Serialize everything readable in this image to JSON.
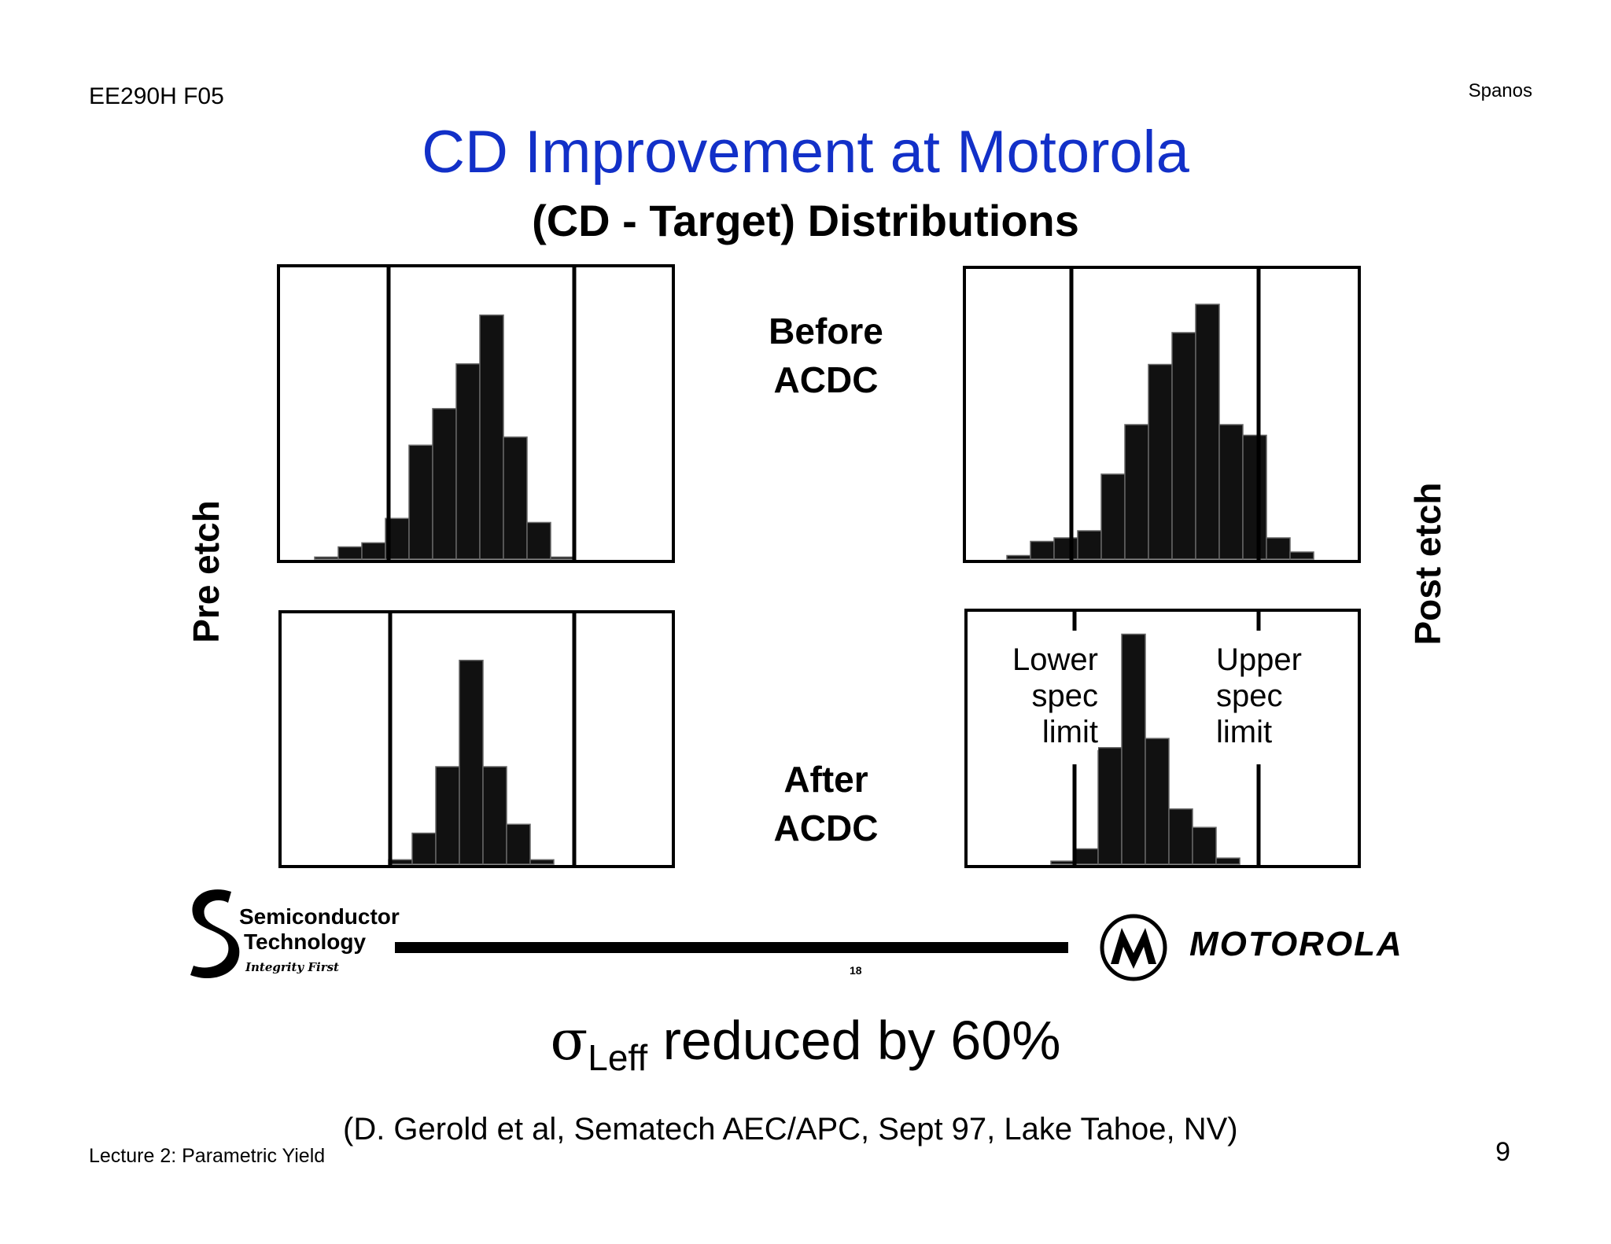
{
  "header": {
    "course": "EE290H F05",
    "author": "Spanos"
  },
  "title": "CD Improvement at Motorola",
  "subtitle": "(CD - Target) Distributions",
  "labels": {
    "pre_etch": "Pre etch",
    "post_etch": "Post etch",
    "before": "Before\nACDC",
    "after": "After\nACDC",
    "lower_spec": "Lower\nspec\nlimit",
    "upper_spec": "Upper\nspec\nlimit"
  },
  "logos": {
    "semiconductor": [
      "Semiconductor",
      "Technology",
      "Integrity First"
    ],
    "motorola": "MOTOROLA",
    "slide_number": "18"
  },
  "result": {
    "sigma": "σ",
    "sub": "Leff",
    "text": " reduced by 60%"
  },
  "citation": "(D. Gerold et al, Sematech AEC/APC, Sept 97, Lake Tahoe, NV)",
  "footer": {
    "lecture": "Lecture 2: Parametric Yield",
    "page": "9"
  },
  "chart_data": [
    {
      "type": "bar",
      "name": "pre-etch-before",
      "title": "Pre etch, Before ACDC",
      "values": [
        0.5,
        3,
        4,
        10,
        28,
        37,
        48,
        60,
        30,
        9,
        0.5
      ],
      "ylim": [
        0,
        70
      ],
      "spec_limits": [
        2,
        9
      ]
    },
    {
      "type": "bar",
      "name": "post-etch-before",
      "title": "Post etch, Before ACDC",
      "values": [
        1,
        5,
        6,
        8,
        24,
        38,
        55,
        64,
        72,
        38,
        35,
        6,
        2
      ],
      "ylim": [
        0,
        80
      ],
      "spec_limits": [
        3,
        12
      ]
    },
    {
      "type": "bar",
      "name": "pre-etch-after",
      "title": "Pre etch, After ACDC",
      "values": [
        1,
        7,
        22,
        46,
        22,
        9,
        1
      ],
      "ylim": [
        0,
        55
      ],
      "spec_limits": [
        0,
        8
      ]
    },
    {
      "type": "bar",
      "name": "post-etch-after",
      "title": "Post etch, After ACDC",
      "values": [
        1,
        5,
        38,
        75,
        41,
        18,
        12,
        2
      ],
      "ylim": [
        0,
        80
      ],
      "spec_limits": [
        0,
        8
      ]
    }
  ]
}
